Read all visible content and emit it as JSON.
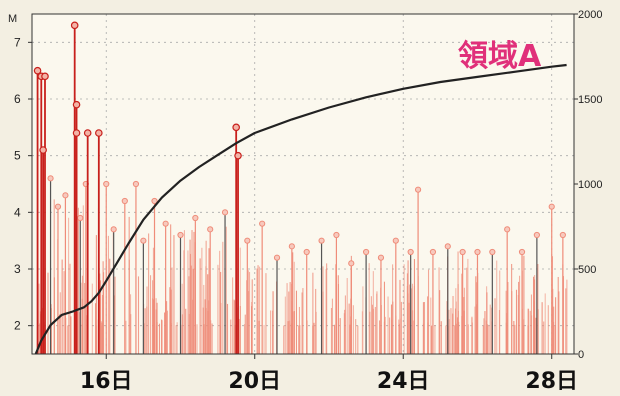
{
  "chart_data": {
    "type": "line",
    "title": "領域A",
    "left_axis_label": "M",
    "left_ylim": [
      1.5,
      7.5
    ],
    "left_ticks": [
      2,
      3,
      4,
      5,
      6,
      7
    ],
    "right_ylim": [
      0,
      2000
    ],
    "right_ticks": [
      0,
      500,
      1000,
      1500,
      2000
    ],
    "xlim": [
      14.0,
      28.6
    ],
    "x_ticks": [
      {
        "day": 16,
        "label": "16日"
      },
      {
        "day": 20,
        "label": "20日"
      },
      {
        "day": 24,
        "label": "24日"
      },
      {
        "day": 28,
        "label": "28日"
      }
    ],
    "grid": "dotted",
    "colors": {
      "stems": "#ef8c79",
      "major_stems": "#c8201c",
      "cumulative": "#222222",
      "title": "#e0307a",
      "background": "#fbf8ee"
    },
    "series": [
      {
        "kind": "cumulative_count",
        "axis": "right",
        "x": [
          14.1,
          14.25,
          14.5,
          14.8,
          15.1,
          15.4,
          15.6,
          15.8,
          16.0,
          16.3,
          16.6,
          17.0,
          17.5,
          18.0,
          18.5,
          19.0,
          19.5,
          20.0,
          21.0,
          22.0,
          23.0,
          24.0,
          25.0,
          26.0,
          27.0,
          28.0,
          28.4
        ],
        "y": [
          0,
          80,
          170,
          230,
          250,
          275,
          310,
          360,
          430,
          540,
          650,
          790,
          920,
          1020,
          1100,
          1170,
          1240,
          1300,
          1380,
          1450,
          1510,
          1560,
          1600,
          1630,
          1660,
          1690,
          1700
        ]
      },
      {
        "kind": "major_events",
        "axis": "left",
        "x": [
          14.15,
          14.25,
          14.35,
          14.3,
          15.15,
          15.2,
          15.2,
          15.5,
          15.8,
          19.5,
          19.55
        ],
        "y": [
          6.5,
          6.4,
          6.4,
          5.1,
          7.3,
          5.9,
          5.4,
          5.4,
          5.4,
          5.5,
          5.0
        ]
      },
      {
        "kind": "events",
        "axis": "left",
        "x": [
          14.5,
          14.7,
          14.9,
          15.3,
          15.45,
          16.0,
          16.2,
          16.5,
          16.8,
          17.0,
          17.3,
          17.6,
          18.0,
          18.4,
          18.8,
          19.2,
          19.8,
          20.2,
          20.6,
          21.0,
          21.4,
          21.8,
          22.2,
          22.6,
          23.0,
          23.4,
          23.8,
          24.2,
          24.4,
          24.8,
          25.2,
          25.6,
          26.0,
          26.4,
          26.8,
          27.2,
          27.6,
          28.0,
          28.3
        ],
        "y": [
          4.6,
          4.1,
          4.3,
          3.9,
          4.5,
          4.5,
          3.7,
          4.2,
          4.5,
          3.5,
          4.2,
          3.8,
          3.6,
          3.9,
          3.7,
          4.0,
          3.5,
          3.8,
          3.2,
          3.4,
          3.3,
          3.5,
          3.6,
          3.1,
          3.3,
          3.2,
          3.5,
          3.3,
          4.4,
          3.3,
          3.4,
          3.3,
          3.3,
          3.3,
          3.7,
          3.3,
          3.6,
          4.1,
          3.6
        ]
      }
    ]
  }
}
